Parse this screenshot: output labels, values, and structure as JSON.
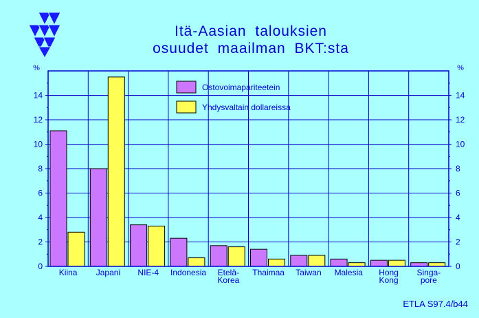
{
  "titles": {
    "line1": "Itä-Aasian  talouksien",
    "line2": "osuudet  maailman  BKT:sta"
  },
  "footer": "ETLA S97.4/b44",
  "colors": {
    "background": "#aaffff",
    "plot_background": "#aaffff",
    "axis": "#0000cc",
    "series1": "#cc77ff",
    "series2": "#ffff55",
    "logo": "#1a1aff"
  },
  "chart_data": {
    "type": "bar",
    "categories": [
      "Kiina",
      "Japani",
      "NIE-4",
      "Indonesia",
      "Etelä-Korea",
      "Thaimaa",
      "Taiwan",
      "Malesia",
      "Hong Kong",
      "Singapore"
    ],
    "category_labels": [
      [
        "Kiina"
      ],
      [
        "Japani"
      ],
      [
        "NIE-4"
      ],
      [
        "Indonesia"
      ],
      [
        "Etelä-",
        "Korea"
      ],
      [
        "Thaimaa"
      ],
      [
        "Taiwan"
      ],
      [
        "Malesia"
      ],
      [
        "Hong",
        "Kong"
      ],
      [
        "Singa-",
        "pore"
      ]
    ],
    "series": [
      {
        "name": "Ostovoimapariteetein",
        "values": [
          11.1,
          8.0,
          3.4,
          2.3,
          1.7,
          1.4,
          0.9,
          0.6,
          0.5,
          0.3
        ]
      },
      {
        "name": "Yhdysvaltain dollareissa",
        "values": [
          2.8,
          15.5,
          3.3,
          0.7,
          1.6,
          0.6,
          0.9,
          0.3,
          0.5,
          0.3
        ]
      }
    ],
    "yticks": [
      0,
      2,
      4,
      6,
      8,
      10,
      12,
      14
    ],
    "ylim": [
      0,
      16
    ],
    "y_unit_label": "%",
    "grid": true,
    "legend_position": "top-center"
  }
}
